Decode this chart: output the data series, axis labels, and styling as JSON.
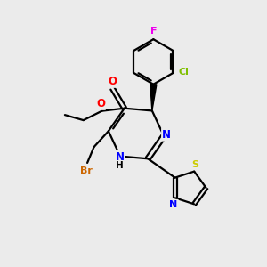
{
  "background_color": "#ebebeb",
  "bond_color": "#000000",
  "atom_colors": {
    "F": "#ee00ee",
    "Cl": "#7fbf00",
    "Br": "#cc6600",
    "O": "#ff0000",
    "N": "#0000ff",
    "S": "#cccc00",
    "C": "#000000",
    "H": "#000000"
  },
  "figsize": [
    3.0,
    3.0
  ],
  "dpi": 100
}
